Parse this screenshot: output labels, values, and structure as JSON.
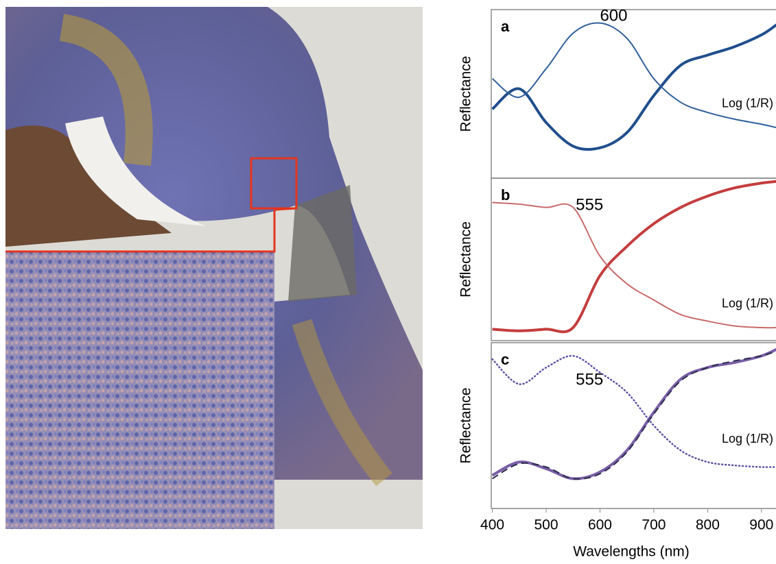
{
  "chart_data": [
    {
      "type": "line",
      "label": "a",
      "ylabel": "Reflectance",
      "xlim": [
        398,
        927
      ],
      "ylim": [
        0,
        100
      ],
      "x": [
        400,
        450,
        500,
        550,
        600,
        650,
        700,
        750,
        800,
        850,
        900,
        928
      ],
      "annotations": [
        {
          "text": "600",
          "x": 600
        }
      ],
      "series": [
        {
          "color": "#1f4e8c",
          "values": [
            41,
            53,
            33,
            19,
            18,
            27,
            49,
            67,
            73,
            78,
            85,
            91
          ]
        },
        {
          "name": "Log (1/R)",
          "color": "#2f5f9a",
          "values": [
            59,
            48,
            65,
            86,
            92,
            83,
            59,
            45,
            39,
            35,
            32,
            30
          ]
        }
      ]
    },
    {
      "type": "line",
      "label": "b",
      "ylabel": "Reflectance",
      "xlim": [
        398,
        927
      ],
      "ylim": [
        0,
        100
      ],
      "x": [
        400,
        450,
        500,
        550,
        600,
        650,
        700,
        750,
        800,
        850,
        900,
        928
      ],
      "annotations": [
        {
          "text": "555",
          "x": 555
        }
      ],
      "series": [
        {
          "color": "#c43d3d",
          "values": [
            7,
            6,
            7,
            8,
            40,
            58,
            72,
            82,
            89,
            94,
            97,
            98
          ]
        },
        {
          "name": "Log (1/R)",
          "color": "#c86a6a",
          "values": [
            85,
            84,
            82,
            82,
            52,
            35,
            25,
            16,
            12,
            9,
            8,
            8
          ]
        }
      ]
    },
    {
      "type": "line",
      "label": "c",
      "ylabel": "Reflectance",
      "xlabel": "Wavelengths (nm)",
      "xlim": [
        398,
        927
      ],
      "ylim": [
        0,
        100
      ],
      "xticks": [
        400,
        500,
        600,
        700,
        800,
        900
      ],
      "x": [
        400,
        450,
        500,
        550,
        600,
        650,
        700,
        750,
        800,
        850,
        900,
        928
      ],
      "annotations": [
        {
          "text": "555",
          "x": 555
        }
      ],
      "series": [
        {
          "color": "#7a5fa8",
          "values": [
            20,
            28,
            24,
            18,
            22,
            35,
            58,
            78,
            85,
            88,
            92,
            96
          ]
        },
        {
          "color": "#2a2a4a",
          "dash": true,
          "values": [
            18,
            27,
            25,
            18,
            21,
            34,
            57,
            77,
            85,
            89,
            92,
            95
          ]
        },
        {
          "name": "Log (1/R)",
          "color": "#5b4fa0",
          "dotted": true,
          "values": [
            90,
            75,
            85,
            92,
            82,
            70,
            50,
            35,
            28,
            26,
            25,
            25
          ]
        }
      ]
    }
  ]
}
